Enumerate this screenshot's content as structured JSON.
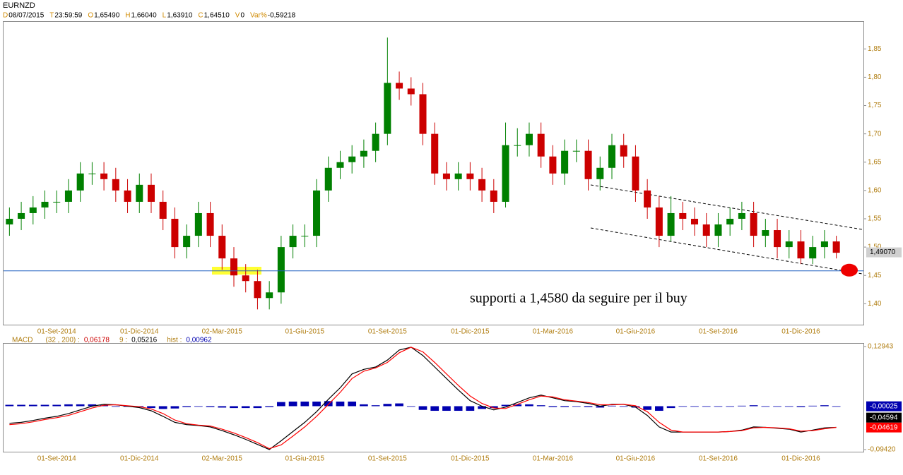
{
  "header": {
    "symbol": "EURNZD",
    "fields": [
      {
        "key": "D",
        "value": "08/07/2015"
      },
      {
        "key": "T",
        "value": "23:59:59"
      },
      {
        "key": "O",
        "value": "1,65490"
      },
      {
        "key": "H",
        "value": "1,66040"
      },
      {
        "key": "L",
        "value": "1,63910"
      },
      {
        "key": "C",
        "value": "1,64510"
      },
      {
        "key": "V",
        "value": "0"
      },
      {
        "key": "Var%",
        "value": "-0,59218"
      }
    ]
  },
  "chart_data": [
    {
      "type": "candlestick",
      "categories": [
        null,
        null,
        null,
        null,
        "01-Set-2014",
        null,
        null,
        null,
        null,
        null,
        null,
        "01-Dic-2014",
        null,
        null,
        null,
        null,
        null,
        null,
        "02-Mar-2015",
        null,
        null,
        null,
        null,
        null,
        null,
        "01-Giu-2015",
        null,
        null,
        null,
        null,
        null,
        null,
        "01-Set-2015",
        null,
        null,
        null,
        null,
        null,
        null,
        "01-Dic-2015",
        null,
        null,
        null,
        null,
        null,
        null,
        "01-Mar-2016",
        null,
        null,
        null,
        null,
        null,
        null,
        "01-Giu-2016",
        null,
        null,
        null,
        null,
        null,
        null,
        "01-Set-2016",
        null,
        null,
        null,
        null,
        null,
        null,
        "01-Dic-2016",
        null,
        null,
        null
      ],
      "open": [
        1.54,
        1.55,
        1.56,
        1.57,
        1.58,
        1.58,
        1.6,
        1.63,
        1.63,
        1.62,
        1.6,
        1.58,
        1.61,
        1.58,
        1.55,
        1.5,
        1.52,
        1.56,
        1.52,
        1.48,
        1.45,
        1.44,
        1.41,
        1.42,
        1.5,
        1.52,
        1.52,
        1.6,
        1.64,
        1.65,
        1.66,
        1.67,
        1.7,
        1.79,
        1.78,
        1.77,
        1.7,
        1.63,
        1.62,
        1.63,
        1.62,
        1.6,
        1.58,
        1.68,
        1.68,
        1.7,
        1.66,
        1.63,
        1.67,
        1.67,
        1.62,
        1.64,
        1.68,
        1.66,
        1.6,
        1.57,
        1.52,
        1.56,
        1.55,
        1.54,
        1.52,
        1.54,
        1.55,
        1.56,
        1.52,
        1.53,
        1.5,
        1.51,
        1.48,
        1.5,
        1.51
      ],
      "high": [
        1.57,
        1.58,
        1.59,
        1.6,
        1.6,
        1.62,
        1.65,
        1.65,
        1.65,
        1.64,
        1.62,
        1.63,
        1.63,
        1.6,
        1.57,
        1.54,
        1.58,
        1.58,
        1.54,
        1.5,
        1.47,
        1.46,
        1.44,
        1.52,
        1.54,
        1.54,
        1.62,
        1.66,
        1.67,
        1.68,
        1.69,
        1.72,
        1.87,
        1.81,
        1.8,
        1.79,
        1.72,
        1.65,
        1.65,
        1.65,
        1.64,
        1.62,
        1.72,
        1.71,
        1.72,
        1.72,
        1.68,
        1.69,
        1.69,
        1.69,
        1.66,
        1.7,
        1.7,
        1.68,
        1.62,
        1.59,
        1.59,
        1.58,
        1.57,
        1.56,
        1.56,
        1.57,
        1.58,
        1.58,
        1.55,
        1.55,
        1.53,
        1.53,
        1.52,
        1.53,
        1.52
      ],
      "low": [
        1.52,
        1.53,
        1.54,
        1.55,
        1.56,
        1.56,
        1.58,
        1.61,
        1.6,
        1.58,
        1.56,
        1.56,
        1.56,
        1.53,
        1.48,
        1.48,
        1.5,
        1.5,
        1.46,
        1.43,
        1.42,
        1.39,
        1.39,
        1.4,
        1.48,
        1.5,
        1.5,
        1.58,
        1.62,
        1.63,
        1.64,
        1.65,
        1.68,
        1.76,
        1.75,
        1.68,
        1.61,
        1.6,
        1.6,
        1.6,
        1.58,
        1.56,
        1.57,
        1.66,
        1.66,
        1.64,
        1.61,
        1.61,
        1.65,
        1.6,
        1.6,
        1.62,
        1.64,
        1.58,
        1.55,
        1.5,
        1.51,
        1.53,
        1.52,
        1.5,
        1.5,
        1.52,
        1.53,
        1.5,
        1.5,
        1.48,
        1.48,
        1.47,
        1.47,
        1.48,
        1.48
      ],
      "close": [
        1.55,
        1.56,
        1.57,
        1.58,
        1.58,
        1.6,
        1.63,
        1.63,
        1.62,
        1.6,
        1.58,
        1.61,
        1.58,
        1.55,
        1.5,
        1.52,
        1.56,
        1.52,
        1.48,
        1.45,
        1.44,
        1.41,
        1.42,
        1.5,
        1.52,
        1.52,
        1.6,
        1.64,
        1.65,
        1.66,
        1.67,
        1.7,
        1.79,
        1.78,
        1.77,
        1.7,
        1.63,
        1.62,
        1.63,
        1.62,
        1.6,
        1.58,
        1.68,
        1.68,
        1.7,
        1.66,
        1.63,
        1.67,
        1.67,
        1.62,
        1.64,
        1.68,
        1.66,
        1.6,
        1.57,
        1.52,
        1.56,
        1.55,
        1.54,
        1.52,
        1.54,
        1.55,
        1.56,
        1.52,
        1.53,
        1.5,
        1.51,
        1.48,
        1.5,
        1.51,
        1.49
      ],
      "up_color": "#008000",
      "down_color": "#cc0000",
      "ylim": [
        1.363,
        1.899
      ],
      "yticks": [
        {
          "value": 1.4,
          "label": "1,40"
        },
        {
          "value": 1.45,
          "label": "1,45"
        },
        {
          "value": 1.5,
          "label": "1,50"
        },
        {
          "value": 1.55,
          "label": "1,55"
        },
        {
          "value": 1.6,
          "label": "1,60"
        },
        {
          "value": 1.65,
          "label": "1,65"
        },
        {
          "value": 1.7,
          "label": "1,70"
        },
        {
          "value": 1.75,
          "label": "1,75"
        },
        {
          "value": 1.8,
          "label": "1,80"
        },
        {
          "value": 1.85,
          "label": "1,85"
        }
      ],
      "last_price": {
        "value": 1.4907,
        "label": "1,49070"
      },
      "support": {
        "value": 1.458,
        "color": "#1f5fbf"
      },
      "annotation": "supporti a 1,4580 da seguire per il buy"
    },
    {
      "type": "macd",
      "title": "MACD",
      "ylim": [
        -0.0942,
        0.12943
      ],
      "yticks": [
        {
          "value": 0.12943,
          "label": "0,12943"
        },
        {
          "value": -0.0942,
          "label": "-0,09420"
        }
      ],
      "series": [
        {
          "name": "(32 , 200) :",
          "kind": "line",
          "color": "#000000",
          "readout": {
            "value": 0.06178,
            "label": "0,06178"
          },
          "last": {
            "value": -0.04594,
            "label": "-0,04594"
          },
          "values": [
            -0.037,
            -0.035,
            -0.031,
            -0.026,
            -0.022,
            -0.016,
            -0.008,
            0.0,
            0.004,
            0.003,
            0.0,
            -0.003,
            -0.01,
            -0.022,
            -0.035,
            -0.04,
            -0.042,
            -0.045,
            -0.053,
            -0.062,
            -0.072,
            -0.083,
            -0.094,
            -0.075,
            -0.055,
            -0.035,
            -0.012,
            0.015,
            0.04,
            0.07,
            0.08,
            0.085,
            0.1,
            0.122,
            0.128,
            0.11,
            0.085,
            0.06,
            0.035,
            0.012,
            0.0,
            -0.008,
            -0.002,
            0.008,
            0.018,
            0.024,
            0.018,
            0.012,
            0.01,
            0.006,
            0.0,
            0.004,
            0.004,
            -0.002,
            -0.02,
            -0.045,
            -0.056,
            -0.056,
            -0.056,
            -0.056,
            -0.056,
            -0.055,
            -0.052,
            -0.045,
            -0.046,
            -0.048,
            -0.05,
            -0.056,
            -0.052,
            -0.047,
            -0.046
          ]
        },
        {
          "name": "9 :",
          "kind": "line",
          "color": "#ff0000",
          "readout": {
            "value": 0.05216,
            "label": "0,05216"
          },
          "last": {
            "value": -0.04619,
            "label": "-0,04619"
          },
          "values": [
            -0.04,
            -0.038,
            -0.034,
            -0.029,
            -0.025,
            -0.02,
            -0.012,
            -0.004,
            0.002,
            0.003,
            0.001,
            -0.001,
            -0.006,
            -0.016,
            -0.03,
            -0.038,
            -0.041,
            -0.043,
            -0.05,
            -0.058,
            -0.068,
            -0.079,
            -0.092,
            -0.084,
            -0.065,
            -0.045,
            -0.022,
            0.004,
            0.03,
            0.06,
            0.076,
            0.083,
            0.095,
            0.116,
            0.128,
            0.118,
            0.095,
            0.07,
            0.045,
            0.022,
            0.006,
            -0.004,
            -0.005,
            0.004,
            0.014,
            0.022,
            0.02,
            0.014,
            0.011,
            0.008,
            0.003,
            0.003,
            0.004,
            0.001,
            -0.012,
            -0.035,
            -0.052,
            -0.056,
            -0.056,
            -0.056,
            -0.056,
            -0.055,
            -0.053,
            -0.047,
            -0.046,
            -0.047,
            -0.049,
            -0.054,
            -0.053,
            -0.049,
            -0.046
          ]
        },
        {
          "name": "hist :",
          "kind": "bar",
          "color": "#0000b0",
          "readout": {
            "value": 0.00962,
            "label": "0,00962"
          },
          "last": {
            "value": -0.00025,
            "label": "-0,00025"
          },
          "values": [
            0.003,
            0.003,
            0.003,
            0.003,
            0.003,
            0.004,
            0.004,
            0.004,
            0.002,
            0.0,
            -0.001,
            -0.002,
            -0.004,
            -0.006,
            -0.005,
            -0.002,
            -0.001,
            -0.002,
            -0.003,
            -0.004,
            -0.004,
            -0.004,
            -0.002,
            0.009,
            0.01,
            0.01,
            0.01,
            0.011,
            0.01,
            0.01,
            0.004,
            0.002,
            0.005,
            0.006,
            0.0,
            -0.008,
            -0.01,
            -0.01,
            -0.01,
            -0.01,
            -0.006,
            -0.004,
            0.003,
            0.004,
            0.004,
            0.002,
            -0.002,
            -0.002,
            -0.001,
            -0.002,
            -0.003,
            0.001,
            0.0,
            -0.003,
            -0.008,
            -0.01,
            -0.004,
            0.0,
            0.0,
            0.0,
            0.0,
            0.0,
            0.001,
            0.002,
            0.0,
            -0.001,
            -0.001,
            -0.002,
            0.001,
            0.002,
            0.0
          ]
        }
      ]
    }
  ]
}
